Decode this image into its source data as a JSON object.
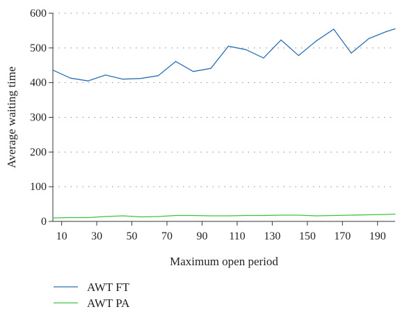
{
  "chart_data": {
    "type": "line",
    "xlabel": "Maximum open period",
    "ylabel": "Average waiting time",
    "xlim": [
      5,
      200
    ],
    "ylim": [
      0,
      600
    ],
    "x_ticks": [
      10,
      30,
      50,
      70,
      90,
      110,
      130,
      150,
      170,
      190
    ],
    "y_ticks": [
      0,
      100,
      200,
      300,
      400,
      500,
      600
    ],
    "grid": "horizontal dotted",
    "legend_position": "bottom-left",
    "x": [
      5,
      15,
      25,
      35,
      45,
      55,
      65,
      75,
      85,
      95,
      105,
      115,
      125,
      135,
      145,
      155,
      165,
      175,
      185,
      195,
      200
    ],
    "series": [
      {
        "name": "AWT FT",
        "color": "#2a6fb5",
        "values": [
          436,
          413,
          405,
          422,
          410,
          412,
          420,
          461,
          432,
          441,
          505,
          495,
          471,
          523,
          478,
          520,
          554,
          485,
          527,
          547,
          555
        ]
      },
      {
        "name": "AWT PA",
        "color": "#3ec23e",
        "values": [
          10,
          11,
          11,
          14,
          16,
          13,
          14,
          17,
          17,
          16,
          16,
          17,
          17,
          18,
          18,
          16,
          17,
          18,
          19,
          20,
          21
        ]
      }
    ]
  }
}
